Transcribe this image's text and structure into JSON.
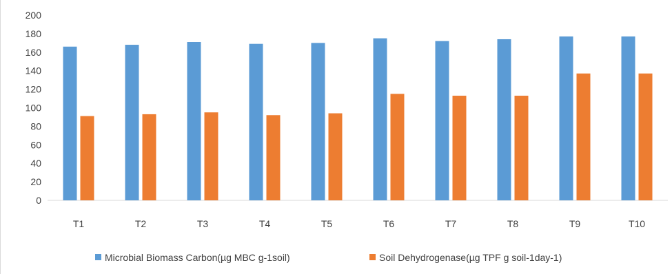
{
  "chart_data": {
    "type": "bar",
    "title": "",
    "xlabel": "",
    "ylabel": "",
    "categories": [
      "T1",
      "T2",
      "T3",
      "T4",
      "T5",
      "T6",
      "T7",
      "T8",
      "T9",
      "T10"
    ],
    "ylim": [
      0,
      200
    ],
    "yticks": [
      "0",
      "20",
      "40",
      "60",
      "80",
      "100",
      "120",
      "140",
      "160",
      "180",
      "200"
    ],
    "grid": false,
    "legend_position": "bottom",
    "series": [
      {
        "name": "Microbial Biomass Carbon(µg MBC g-1soil)",
        "color": "#5b9bd5",
        "values": [
          166,
          168,
          171,
          169,
          170,
          175,
          172,
          174,
          177,
          177
        ]
      },
      {
        "name": "Soil Dehydrogenase(µg TPF g soil-1day-1)",
        "color": "#ed7d31",
        "values": [
          91,
          93,
          95,
          92,
          94,
          115,
          113,
          113,
          137,
          137
        ]
      }
    ]
  }
}
